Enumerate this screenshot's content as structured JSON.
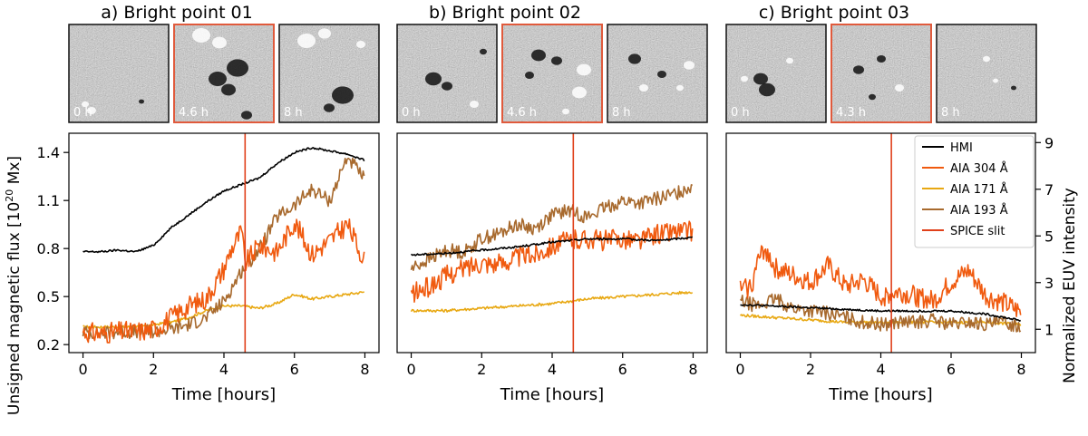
{
  "figure": {
    "y_left_label": "Unsigned magnetic flux [10",
    "y_left_sup": "20",
    "y_left_unit": " Mx]",
    "y_right_label": "Normalized EUV intensity",
    "colors": {
      "hmi": "#000000",
      "aia304": "#f05a0f",
      "aia171": "#e8a812",
      "aia193": "#a86a2e",
      "spice": "#e0401a",
      "frame_highlight": "#e05a3c"
    }
  },
  "legend": [
    {
      "key": "hmi",
      "label": "HMI"
    },
    {
      "key": "aia304",
      "label": "AIA 304 Å"
    },
    {
      "key": "aia171",
      "label": "AIA 171 Å"
    },
    {
      "key": "aia193",
      "label": "AIA 193 Å"
    },
    {
      "key": "spice",
      "label": "SPICE slit"
    }
  ],
  "panels": [
    {
      "title": "a) Bright point 01",
      "frames": [
        "0 h",
        "4.6 h",
        "8 h"
      ],
      "highlight_frame": 1,
      "xlabel": "Time [hours]",
      "spice_time": 4.6
    },
    {
      "title": "b) Bright point 02",
      "frames": [
        "0 h",
        "4.6 h",
        "8 h"
      ],
      "highlight_frame": 1,
      "xlabel": "Time [hours]",
      "spice_time": 4.6
    },
    {
      "title": "c) Bright point 03",
      "frames": [
        "0 h",
        "4.3 h",
        "8 h"
      ],
      "highlight_frame": 1,
      "xlabel": "Time [hours]",
      "spice_time": 4.3
    }
  ],
  "chart_data": [
    {
      "type": "line",
      "title": "a) Bright point 01",
      "xlabel": "Time [hours]",
      "ylabel": "Unsigned magnetic flux [10^20 Mx]",
      "xlim": [
        -0.4,
        8.4
      ],
      "ylim": [
        0.15,
        1.52
      ],
      "xticks": [
        0,
        2,
        4,
        6,
        8
      ],
      "yticks": [
        0.2,
        0.5,
        0.8,
        1.1,
        1.4
      ],
      "y2lim": [
        0.0,
        9.4
      ],
      "y2ticks": [
        1,
        3,
        5,
        7,
        9
      ],
      "spice_time": 4.6,
      "series": [
        {
          "name": "HMI",
          "axis": "left",
          "x": [
            0,
            0.5,
            1,
            1.5,
            2,
            2.5,
            3,
            3.5,
            4,
            4.5,
            5,
            5.5,
            6,
            6.5,
            7,
            7.5,
            8
          ],
          "values": [
            0.78,
            0.78,
            0.79,
            0.78,
            0.82,
            0.93,
            1.01,
            1.09,
            1.16,
            1.2,
            1.24,
            1.33,
            1.4,
            1.43,
            1.41,
            1.39,
            1.35
          ]
        },
        {
          "name": "AIA 304 Å",
          "axis": "right",
          "x": [
            0,
            0.5,
            1,
            1.5,
            2,
            2.5,
            3,
            3.5,
            4,
            4.2,
            4.5,
            4.6,
            5,
            5.5,
            6,
            6.5,
            7,
            7.5,
            8
          ],
          "values": [
            0.9,
            0.8,
            0.9,
            0.9,
            1.0,
            1.5,
            2.0,
            2.3,
            3.6,
            4.4,
            5.2,
            3.8,
            4.6,
            4.3,
            5.6,
            4.2,
            4.8,
            5.5,
            3.9
          ]
        },
        {
          "name": "AIA 171 Å",
          "axis": "right",
          "x": [
            0,
            0.5,
            1,
            1.5,
            2,
            2.5,
            3,
            3.5,
            4,
            4.5,
            5,
            5.5,
            6,
            6.5,
            7,
            7.5,
            8
          ],
          "values": [
            1.1,
            1.1,
            1.1,
            1.1,
            1.2,
            1.3,
            1.5,
            1.8,
            2.0,
            2.0,
            1.9,
            2.1,
            2.5,
            2.3,
            2.4,
            2.5,
            2.6
          ]
        },
        {
          "name": "AIA 193 Å",
          "axis": "right",
          "x": [
            0,
            0.5,
            1,
            1.5,
            2,
            2.5,
            3,
            3.5,
            4,
            4.5,
            5,
            5.5,
            6,
            6.5,
            7,
            7.5,
            8
          ],
          "values": [
            0.9,
            0.8,
            0.9,
            0.9,
            0.9,
            1.0,
            1.2,
            1.5,
            2.2,
            3.5,
            4.4,
            5.8,
            6.3,
            7.0,
            6.5,
            8.4,
            7.4
          ]
        }
      ]
    },
    {
      "type": "line",
      "title": "b) Bright point 02",
      "xlabel": "Time [hours]",
      "xlim": [
        -0.4,
        8.4
      ],
      "ylim": [
        0.15,
        1.52
      ],
      "xticks": [
        0,
        2,
        4,
        6,
        8
      ],
      "y2lim": [
        0.0,
        9.4
      ],
      "spice_time": 4.6,
      "series": [
        {
          "name": "HMI",
          "axis": "left",
          "x": [
            0,
            1,
            2,
            3,
            4,
            5,
            6,
            7,
            8
          ],
          "values": [
            0.76,
            0.77,
            0.79,
            0.81,
            0.84,
            0.86,
            0.86,
            0.85,
            0.87
          ]
        },
        {
          "name": "AIA 304 Å",
          "axis": "right",
          "x": [
            0,
            0.5,
            1,
            1.5,
            2,
            2.5,
            3,
            3.5,
            4,
            4.5,
            5,
            5.5,
            6,
            6.5,
            7,
            7.5,
            8
          ],
          "values": [
            2.5,
            2.8,
            3.3,
            3.6,
            3.9,
            3.8,
            4.1,
            4.2,
            4.6,
            4.8,
            4.9,
            4.8,
            4.9,
            4.8,
            5.1,
            5.2,
            5.2
          ]
        },
        {
          "name": "AIA 171 Å",
          "axis": "right",
          "x": [
            0,
            1,
            2,
            3,
            4,
            5,
            6,
            7,
            8
          ],
          "values": [
            1.8,
            1.8,
            1.9,
            2.0,
            2.1,
            2.3,
            2.4,
            2.5,
            2.6
          ]
        },
        {
          "name": "AIA 193 Å",
          "axis": "right",
          "x": [
            0,
            0.5,
            1,
            1.5,
            2,
            2.5,
            3,
            3.5,
            4,
            4.5,
            5,
            5.5,
            6,
            6.5,
            7,
            7.5,
            8
          ],
          "values": [
            3.6,
            4.0,
            4.4,
            4.3,
            4.9,
            5.1,
            5.5,
            5.3,
            5.9,
            6.1,
            5.8,
            6.2,
            6.5,
            6.4,
            6.6,
            6.8,
            7.2
          ]
        }
      ]
    },
    {
      "type": "line",
      "title": "c) Bright point 03",
      "xlabel": "Time [hours]",
      "ylabel_right": "Normalized EUV intensity",
      "xlim": [
        -0.4,
        8.4
      ],
      "ylim": [
        0.15,
        1.52
      ],
      "xticks": [
        0,
        2,
        4,
        6,
        8
      ],
      "y2lim": [
        0.0,
        9.4
      ],
      "y2ticks": [
        1,
        3,
        5,
        7,
        9
      ],
      "spice_time": 4.3,
      "series": [
        {
          "name": "HMI",
          "axis": "left",
          "x": [
            0,
            1,
            2,
            3,
            4,
            5,
            6,
            7,
            8
          ],
          "values": [
            0.45,
            0.44,
            0.43,
            0.42,
            0.41,
            0.41,
            0.41,
            0.39,
            0.35
          ]
        },
        {
          "name": "AIA 304 Å",
          "axis": "right",
          "x": [
            0,
            0.3,
            0.5,
            0.7,
            1,
            1.5,
            2,
            2.5,
            3,
            3.5,
            4,
            4.5,
            5,
            5.5,
            6,
            6.5,
            7,
            7.5,
            8
          ],
          "values": [
            2.7,
            2.8,
            3.9,
            4.5,
            3.6,
            3.3,
            3.0,
            3.7,
            2.8,
            3.1,
            2.4,
            2.6,
            2.4,
            2.2,
            3.0,
            3.5,
            2.4,
            2.1,
            1.7
          ]
        },
        {
          "name": "AIA 171 Å",
          "axis": "right",
          "x": [
            0,
            1,
            2,
            3,
            4,
            5,
            6,
            7,
            8
          ],
          "values": [
            1.6,
            1.5,
            1.4,
            1.3,
            1.3,
            1.3,
            1.3,
            1.3,
            1.2
          ]
        },
        {
          "name": "AIA 193 Å",
          "axis": "right",
          "x": [
            0,
            0.5,
            1,
            1.5,
            2,
            2.5,
            3,
            3.5,
            4,
            4.5,
            5,
            5.5,
            6,
            6.5,
            7,
            7.5,
            8
          ],
          "values": [
            2.2,
            2.0,
            2.3,
            1.9,
            1.8,
            1.7,
            1.5,
            1.3,
            1.2,
            1.3,
            1.3,
            1.4,
            1.2,
            1.3,
            1.2,
            1.3,
            1.1
          ]
        }
      ]
    }
  ]
}
